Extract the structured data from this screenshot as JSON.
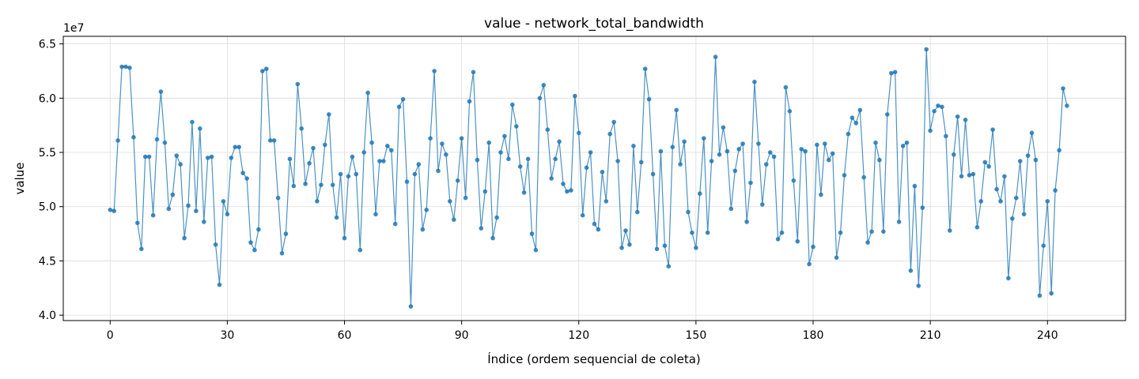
{
  "chart_data": {
    "type": "line",
    "title": "value - network_total_bandwidth",
    "xlabel": "Índice (ordem sequencial de coleta)",
    "ylabel": "value",
    "y_scale_label": "1e7",
    "xlim": [
      -12,
      260
    ],
    "ylim": [
      39500000,
      65700000
    ],
    "x_ticks": [
      0,
      30,
      60,
      90,
      120,
      150,
      180,
      210,
      240
    ],
    "y_ticks": [
      40000000,
      45000000,
      50000000,
      55000000,
      60000000,
      65000000
    ],
    "y_tick_labels": [
      "4.0",
      "4.5",
      "5.0",
      "5.5",
      "6.0",
      "6.5"
    ],
    "grid": true,
    "color": "#1f77b4",
    "marker": "circle",
    "values": [
      49700000,
      49600000,
      56100000,
      62900000,
      62900000,
      62800000,
      56400000,
      48500000,
      46100000,
      54600000,
      54600000,
      49200000,
      56200000,
      60600000,
      55900000,
      49800000,
      51100000,
      54700000,
      53900000,
      47100000,
      50100000,
      57800000,
      49600000,
      57200000,
      48600000,
      54500000,
      54600000,
      46500000,
      42800000,
      50500000,
      49300000,
      54500000,
      55500000,
      55500000,
      53100000,
      52600000,
      46700000,
      46000000,
      47900000,
      62500000,
      62700000,
      56100000,
      56100000,
      50800000,
      45700000,
      47500000,
      54400000,
      51900000,
      61300000,
      57200000,
      52100000,
      54000000,
      55400000,
      50500000,
      52000000,
      55700000,
      58500000,
      52000000,
      49000000,
      53000000,
      47100000,
      52800000,
      54600000,
      53000000,
      46000000,
      55000000,
      60500000,
      55900000,
      49300000,
      54200000,
      54200000,
      55600000,
      55200000,
      48400000,
      59200000,
      59900000,
      52300000,
      40800000,
      53000000,
      53900000,
      47900000,
      49700000,
      56300000,
      62500000,
      53300000,
      55800000,
      54800000,
      50500000,
      48800000,
      52400000,
      56300000,
      50800000,
      59700000,
      62400000,
      54300000,
      48000000,
      51400000,
      55900000,
      47100000,
      49000000,
      55000000,
      56500000,
      54400000,
      59400000,
      57400000,
      53700000,
      51300000,
      54400000,
      47500000,
      46000000,
      60000000,
      61200000,
      57100000,
      52600000,
      54400000,
      56000000,
      52100000,
      51400000,
      51500000,
      60200000,
      56800000,
      49200000,
      53600000,
      55000000,
      48400000,
      47900000,
      53200000,
      50500000,
      56700000,
      57800000,
      54200000,
      46200000,
      47800000,
      46500000,
      55600000,
      49500000,
      54100000,
      62700000,
      59900000,
      53000000,
      46100000,
      55100000,
      46400000,
      44500000,
      55500000,
      58900000,
      53900000,
      56000000,
      49500000,
      47600000,
      46200000,
      51200000,
      56300000,
      47600000,
      54200000,
      63800000,
      54800000,
      57300000,
      55100000,
      49800000,
      53300000,
      55300000,
      55800000,
      48600000,
      52200000,
      61500000,
      55800000,
      50200000,
      53900000,
      55000000,
      54600000,
      47000000,
      47600000,
      61000000,
      58800000,
      52400000,
      46800000,
      55300000,
      55100000,
      44700000,
      46300000,
      55700000,
      51100000,
      55800000,
      54300000,
      54900000,
      45300000,
      47600000,
      52900000,
      56700000,
      58200000,
      57700000,
      58900000,
      52700000,
      46700000,
      47700000,
      55900000,
      54300000,
      47700000,
      58500000,
      62300000,
      62400000,
      48600000,
      55600000,
      55900000,
      44100000,
      51900000,
      42700000,
      49900000,
      64500000,
      57000000,
      58800000,
      59300000,
      59200000,
      56500000,
      47800000,
      54800000,
      58300000,
      52800000,
      58000000,
      52900000,
      53000000,
      48100000,
      50500000,
      54100000,
      53700000,
      57100000,
      51600000,
      50500000,
      52800000,
      43400000,
      48900000,
      50800000,
      54200000,
      49300000,
      54700000,
      56800000,
      54300000,
      41800000,
      46400000,
      50500000,
      42000000,
      51500000,
      55200000,
      60900000,
      59300000
    ]
  }
}
